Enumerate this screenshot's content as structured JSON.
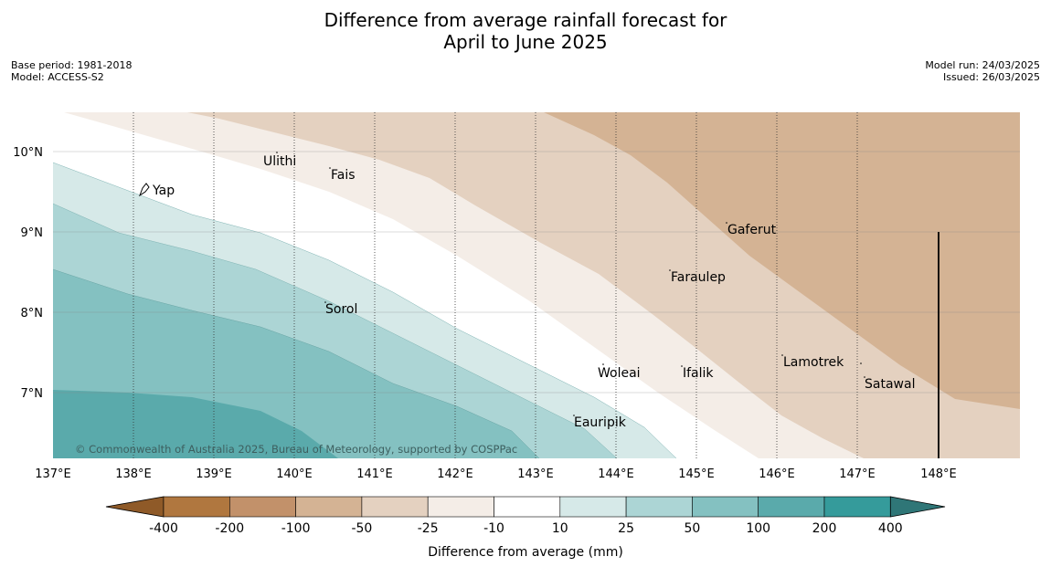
{
  "header": {
    "title_line1": "Difference from average rainfall forecast for",
    "title_line2": "April to June 2025",
    "base_period": "Base period: 1981-2018",
    "model": "Model: ACCESS-S2",
    "model_run": "Model run: 24/03/2025",
    "issued": "Issued: 26/03/2025"
  },
  "map": {
    "lon_labels": [
      "137°E",
      "138°E",
      "139°E",
      "140°E",
      "141°E",
      "142°E",
      "143°E",
      "144°E",
      "145°E",
      "146°E",
      "147°E",
      "148°E"
    ],
    "lat_labels": [
      "10°N",
      "9°N",
      "8°N",
      "7°N"
    ],
    "places": [
      {
        "name": "Yap"
      },
      {
        "name": "Ulithi"
      },
      {
        "name": "Fais"
      },
      {
        "name": "Sorol"
      },
      {
        "name": "Gaferut"
      },
      {
        "name": "Faraulep"
      },
      {
        "name": "Woleai"
      },
      {
        "name": "Ifalik"
      },
      {
        "name": "Lamotrek"
      },
      {
        "name": "Satawal"
      },
      {
        "name": "Eauripik"
      }
    ],
    "copyright": "© Commonwealth of Australia 2025, Bureau of Meteorology, supported by COSPPac"
  },
  "colorbar": {
    "ticks": [
      "-400",
      "-200",
      "-100",
      "-50",
      "-25",
      "-10",
      "10",
      "25",
      "50",
      "100",
      "200",
      "400"
    ],
    "label": "Difference from average (mm)",
    "colors": [
      "#8f5a28",
      "#b0773f",
      "#c2916a",
      "#d4b394",
      "#e4d1c0",
      "#f4ede7",
      "#ffffff",
      "#d6e9e8",
      "#acd5d5",
      "#84c1c1",
      "#5aaaab",
      "#359b9b",
      "#2f7677"
    ]
  }
}
